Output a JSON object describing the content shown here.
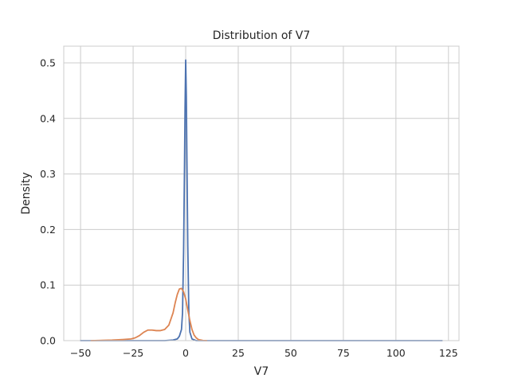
{
  "chart_data": {
    "type": "line",
    "title": "Distribution of V7",
    "xlabel": "V7",
    "ylabel": "Density",
    "xlim": [
      -58,
      130
    ],
    "ylim": [
      0,
      0.53
    ],
    "x_ticks": [
      -50,
      -25,
      0,
      25,
      50,
      75,
      100,
      125
    ],
    "y_ticks": [
      0.0,
      0.1,
      0.2,
      0.3,
      0.4,
      0.5
    ],
    "grid": true,
    "legend": "none",
    "series": [
      {
        "color": "#4c72b0",
        "x": [
          -50,
          -10,
          -6,
          -4,
          -3,
          -2,
          -1.5,
          -1,
          -0.6,
          -0.3,
          0,
          0.3,
          0.6,
          1,
          1.5,
          2,
          3,
          5,
          20,
          60,
          122
        ],
        "y": [
          0,
          0,
          0.001,
          0.003,
          0.008,
          0.02,
          0.05,
          0.16,
          0.3,
          0.42,
          0.505,
          0.44,
          0.32,
          0.17,
          0.05,
          0.015,
          0.003,
          0,
          0,
          0,
          0
        ]
      },
      {
        "color": "#dd8452",
        "x": [
          -45,
          -35,
          -30,
          -26,
          -24,
          -22,
          -20,
          -18,
          -16,
          -14,
          -12,
          -10,
          -8,
          -6,
          -5,
          -4,
          -3,
          -2,
          -1,
          0,
          1,
          2,
          3,
          4,
          5,
          6,
          8,
          10
        ],
        "y": [
          0,
          0.001,
          0.002,
          0.003,
          0.005,
          0.009,
          0.015,
          0.019,
          0.019,
          0.018,
          0.018,
          0.02,
          0.028,
          0.05,
          0.068,
          0.083,
          0.093,
          0.094,
          0.088,
          0.075,
          0.055,
          0.036,
          0.02,
          0.01,
          0.005,
          0.002,
          0.0005,
          0
        ]
      }
    ]
  }
}
